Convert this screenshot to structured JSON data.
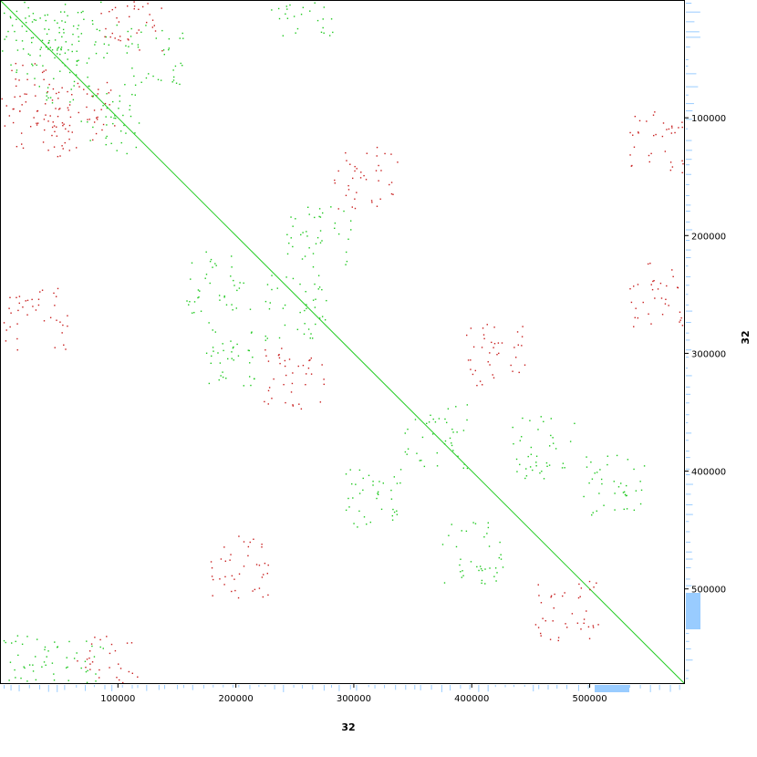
{
  "chart_data": {
    "type": "scatter",
    "title": "",
    "xlabel": "32",
    "ylabel": "32",
    "xlim": [
      0,
      580000
    ],
    "ylim": [
      580000,
      0
    ],
    "xticks": [
      100000,
      200000,
      300000,
      400000,
      500000
    ],
    "yticks": [
      100000,
      200000,
      300000,
      400000,
      500000
    ],
    "tick_labels": {
      "x": [
        "100000",
        "200000",
        "300000",
        "400000",
        "500000"
      ],
      "y": [
        "100000",
        "200000",
        "300000",
        "400000",
        "500000"
      ]
    },
    "grid": false,
    "legend": "none",
    "colors": {
      "forward": "#1ec81e",
      "reverse": "#c81e1e",
      "diagonal": "#22cc22",
      "coverage": "#99ccff",
      "frame": "#000000"
    },
    "series": [
      {
        "values": [
          [
            0,
            0
          ],
          [
            580000,
            580000
          ]
        ]
      },
      {
        "values": [
          [
            14000,
            16000
          ],
          [
            30000,
            36000
          ],
          [
            52000,
            60000
          ],
          [
            75000,
            28000
          ],
          [
            95000,
            105000
          ],
          [
            130000,
            48000
          ],
          [
            185000,
            240000
          ],
          [
            200000,
            300000
          ],
          [
            250000,
            260000
          ],
          [
            270000,
            200000
          ],
          [
            320000,
            420000
          ],
          [
            370000,
            370000
          ],
          [
            400000,
            470000
          ],
          [
            460000,
            380000
          ],
          [
            520000,
            410000
          ],
          [
            10000,
            565000
          ],
          [
            60000,
            570000
          ],
          [
            255000,
            8000
          ]
        ]
      },
      {
        "values": [
          [
            18000,
            80000
          ],
          [
            40000,
            110000
          ],
          [
            70000,
            95000
          ],
          [
            110000,
            20000
          ],
          [
            30000,
            270000
          ],
          [
            200000,
            480000
          ],
          [
            250000,
            320000
          ],
          [
            310000,
            150000
          ],
          [
            420000,
            300000
          ],
          [
            480000,
            520000
          ],
          [
            560000,
            120000
          ],
          [
            90000,
            565000
          ],
          [
            560000,
            250000
          ]
        ]
      }
    ]
  }
}
